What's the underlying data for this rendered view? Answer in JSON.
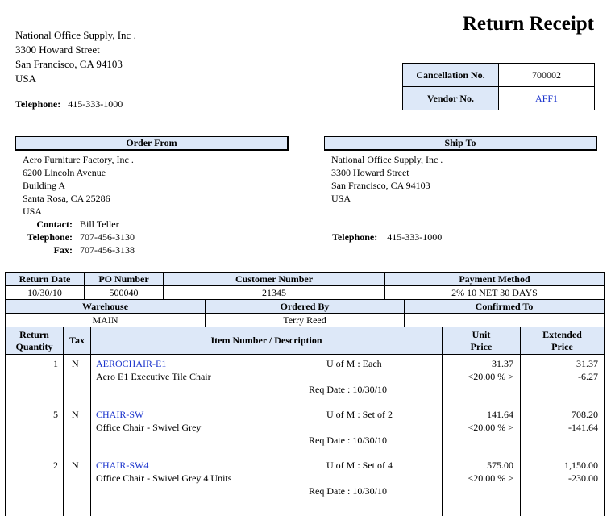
{
  "title": "Return Receipt",
  "company": {
    "lines": [
      "National Office Supply, Inc .",
      "3300  Howard Street",
      "San Francisco, CA 94103",
      "USA"
    ],
    "telephone_label": "Telephone:",
    "telephone": "415-333-1000"
  },
  "ids": {
    "cancellation_label": "Cancellation No.",
    "cancellation": "700002",
    "vendor_label": "Vendor No.",
    "vendor": "AFF1"
  },
  "order_from": {
    "header": "Order From",
    "lines": [
      "Aero Furniture Factory, Inc .",
      "6200  Lincoln Avenue",
      "Building A",
      "Santa Rosa, CA 25286",
      "USA"
    ],
    "contact_label": "Contact:",
    "contact": "Bill Teller",
    "telephone_label": "Telephone:",
    "telephone": "707-456-3130",
    "fax_label": "Fax:",
    "fax": "707-456-3138"
  },
  "ship_to": {
    "header": "Ship To",
    "lines": [
      "National Office Supply, Inc .",
      "3300  Howard Street",
      "San Francisco, CA  94103",
      "USA"
    ],
    "telephone_label": "Telephone:",
    "telephone": "415-333-1000"
  },
  "info": {
    "return_date_label": "Return Date",
    "return_date": "10/30/10",
    "po_label": "PO Number",
    "po": "500040",
    "customer_label": "Customer Number",
    "customer": "21345",
    "payment_label": "Payment Method",
    "payment": "2% 10 NET 30 DAYS",
    "warehouse_label": "Warehouse",
    "warehouse": "MAIN",
    "ordered_by_label": "Ordered By",
    "ordered_by": "Terry Reed",
    "confirmed_label": "Confirmed To",
    "confirmed": ""
  },
  "columns": {
    "qty": [
      "Return",
      "Quantity"
    ],
    "tax": "Tax",
    "item": "Item Number / Description",
    "unit": [
      "Unit",
      "Price"
    ],
    "ext": [
      "Extended",
      "Price"
    ]
  },
  "items": [
    {
      "qty": "1",
      "tax": "N",
      "item": "AEROCHAIR-E1",
      "uom": "U of M : Each",
      "desc": "Aero E1 Executive Tile Chair",
      "req": "Req Date : 10/30/10",
      "unit": "31.37",
      "discount": "<20.00 % >",
      "ext": "31.37",
      "ext_discount": "-6.27"
    },
    {
      "qty": "5",
      "tax": "N",
      "item": "CHAIR-SW",
      "uom": "U of M : Set of 2",
      "desc": "Office Chair - Swivel Grey",
      "req": "Req Date : 10/30/10",
      "unit": "141.64",
      "discount": "<20.00 % >",
      "ext": "708.20",
      "ext_discount": "-141.64"
    },
    {
      "qty": "2",
      "tax": "N",
      "item": "CHAIR-SW4",
      "uom": "U of M : Set of 4",
      "desc": "Office Chair - Swivel Grey 4 Units",
      "req": "Req Date : 10/30/10",
      "unit": "575.00",
      "discount": "<20.00 % >",
      "ext": "1,150.00",
      "ext_discount": "-230.00"
    }
  ]
}
